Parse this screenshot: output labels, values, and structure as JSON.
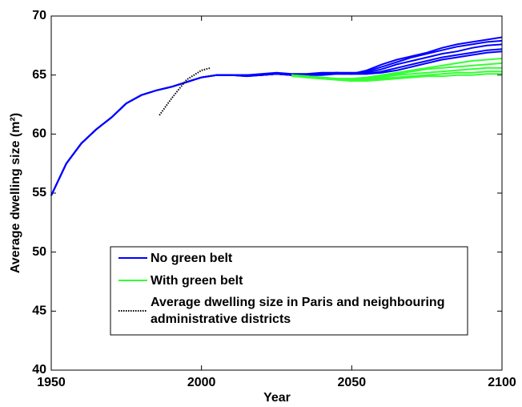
{
  "chart_data": {
    "type": "line",
    "xlabel": "Year",
    "ylabel": "Average dwelling size (m²)",
    "x": [
      1950,
      1955,
      1960,
      1965,
      1970,
      1975,
      1980,
      1985,
      1990,
      1995,
      2000,
      2005,
      2010,
      2015,
      2020,
      2025,
      2030,
      2035,
      2040,
      2045,
      2050,
      2055,
      2060,
      2065,
      2070,
      2075,
      2080,
      2085,
      2090,
      2095,
      2100
    ],
    "xlim": [
      1950,
      2100
    ],
    "xticks": [
      1950,
      2000,
      2050,
      2100
    ],
    "ylim": [
      40,
      70
    ],
    "yticks": [
      40,
      45,
      50,
      55,
      60,
      65,
      70
    ],
    "legend": "lower-center",
    "series": [
      {
        "name": "No green belt",
        "color": "#0000ff",
        "style": "solid",
        "values": [
          [
            54.8,
            57.5,
            59.2,
            60.4,
            61.4,
            62.6,
            63.3,
            63.7,
            64.0,
            64.4,
            64.8,
            65.0,
            65.0,
            65.0,
            65.0,
            65.1,
            65.0,
            65.0,
            65.1,
            65.2,
            65.1,
            65.4,
            65.9,
            66.3,
            66.6,
            66.9,
            67.3,
            67.6,
            67.8,
            68.0,
            68.2
          ],
          [
            54.8,
            57.5,
            59.2,
            60.4,
            61.4,
            62.6,
            63.3,
            63.7,
            64.0,
            64.4,
            64.8,
            65.0,
            65.0,
            64.9,
            65.0,
            65.1,
            65.0,
            65.0,
            65.1,
            65.2,
            65.1,
            65.3,
            65.7,
            66.1,
            66.5,
            66.8,
            67.1,
            67.4,
            67.6,
            67.8,
            67.9
          ],
          [
            54.8,
            57.5,
            59.2,
            60.4,
            61.4,
            62.6,
            63.3,
            63.7,
            64.0,
            64.4,
            64.8,
            65.0,
            65.0,
            65.0,
            65.1,
            65.2,
            65.1,
            65.1,
            65.2,
            65.2,
            65.2,
            65.2,
            65.5,
            65.9,
            66.2,
            66.5,
            66.8,
            67.0,
            67.3,
            67.5,
            67.6
          ],
          [
            54.8,
            57.5,
            59.2,
            60.4,
            61.4,
            62.6,
            63.3,
            63.7,
            64.0,
            64.4,
            64.8,
            65.0,
            65.0,
            64.9,
            65.0,
            65.1,
            65.0,
            65.0,
            65.1,
            65.1,
            65.1,
            65.1,
            65.3,
            65.6,
            65.9,
            66.2,
            66.5,
            66.7,
            66.9,
            67.1,
            67.2
          ],
          [
            54.8,
            57.5,
            59.2,
            60.4,
            61.4,
            62.6,
            63.3,
            63.7,
            64.0,
            64.4,
            64.8,
            65.0,
            65.0,
            65.0,
            65.0,
            65.1,
            65.0,
            65.0,
            65.0,
            65.1,
            65.1,
            65.1,
            65.2,
            65.4,
            65.7,
            66.0,
            66.3,
            66.5,
            66.7,
            66.9,
            67.0
          ]
        ]
      },
      {
        "name": "With green belt",
        "color": "#33ff33",
        "style": "solid",
        "values": [
          [
            null,
            null,
            null,
            null,
            null,
            null,
            null,
            null,
            null,
            null,
            null,
            null,
            null,
            null,
            null,
            null,
            65.0,
            64.9,
            64.8,
            64.7,
            64.7,
            64.8,
            65.0,
            65.2,
            65.4,
            65.6,
            65.8,
            66.0,
            66.2,
            66.3,
            66.4
          ],
          [
            null,
            null,
            null,
            null,
            null,
            null,
            null,
            null,
            null,
            null,
            null,
            null,
            null,
            null,
            null,
            null,
            65.0,
            64.9,
            64.8,
            64.7,
            64.6,
            64.7,
            64.9,
            65.1,
            65.3,
            65.5,
            65.6,
            65.7,
            65.8,
            65.9,
            66.0
          ],
          [
            null,
            null,
            null,
            null,
            null,
            null,
            null,
            null,
            null,
            null,
            null,
            null,
            null,
            null,
            null,
            null,
            65.0,
            64.8,
            64.7,
            64.7,
            64.6,
            64.6,
            64.8,
            65.0,
            65.1,
            65.2,
            65.3,
            65.4,
            65.5,
            65.6,
            65.6
          ],
          [
            null,
            null,
            null,
            null,
            null,
            null,
            null,
            null,
            null,
            null,
            null,
            null,
            null,
            null,
            null,
            null,
            65.0,
            64.8,
            64.7,
            64.6,
            64.5,
            64.6,
            64.7,
            64.8,
            64.9,
            65.0,
            65.1,
            65.2,
            65.2,
            65.3,
            65.3
          ],
          [
            null,
            null,
            null,
            null,
            null,
            null,
            null,
            null,
            null,
            null,
            null,
            null,
            null,
            null,
            null,
            null,
            64.9,
            64.8,
            64.7,
            64.6,
            64.5,
            64.5,
            64.6,
            64.7,
            64.8,
            64.9,
            64.9,
            65.0,
            65.0,
            65.1,
            65.1
          ]
        ]
      },
      {
        "name": "Average dwelling size in Paris and neighbouring administrative districts",
        "color": "#000000",
        "style": "dotted",
        "x": [
          1986,
          1990,
          1995,
          2000,
          2003
        ],
        "values": [
          [
            61.6,
            63.0,
            64.6,
            65.4,
            65.6
          ]
        ]
      }
    ]
  }
}
